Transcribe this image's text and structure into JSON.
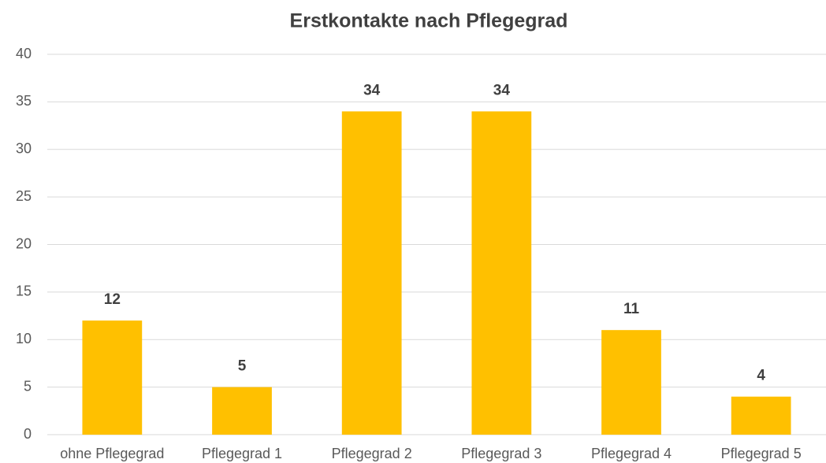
{
  "chart_data": {
    "type": "bar",
    "title": "Erstkontakte nach Pflegegrad",
    "categories": [
      "ohne Pflegegrad",
      "Pflegegrad 1",
      "Pflegegrad 2",
      "Pflegegrad 3",
      "Pflegegrad 4",
      "Pflegegrad 5"
    ],
    "values": [
      12,
      5,
      34,
      34,
      11,
      4
    ],
    "color": "#ffc000",
    "ylim": [
      0,
      40
    ],
    "yticks": [
      0,
      5,
      10,
      15,
      20,
      25,
      30,
      35,
      40
    ],
    "grid": true
  }
}
